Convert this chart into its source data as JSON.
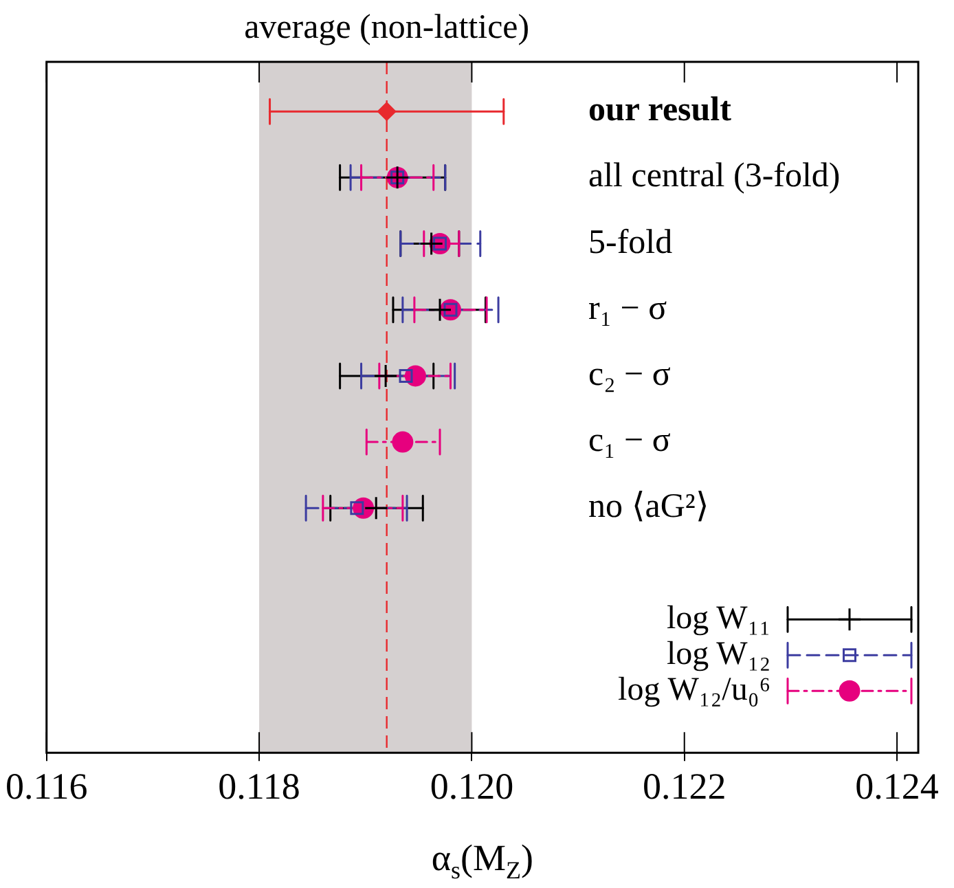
{
  "chart_data": {
    "type": "scatter",
    "orientation": "horizontal",
    "xlabel": "α$_{s}$(M$_{Z}$)",
    "categories": [
      "our result",
      "all central (3-fold)",
      "5-fold",
      "r₁ − σ",
      "c₂ − σ",
      "c₁ − σ",
      "no ⟨aG²⟩"
    ],
    "series": [
      {
        "color": "#e8292e",
        "marker": "diamond",
        "line_style": "solid",
        "values": [
          0.1192,
          null,
          null,
          null,
          null,
          null,
          null
        ],
        "errors": [
          0.0011,
          null,
          null,
          null,
          null,
          null,
          null
        ]
      },
      {
        "name": "log W₁₁",
        "color": "#000000",
        "marker": "cross",
        "line_style": "solid",
        "values": [
          null,
          0.1193,
          0.11962,
          0.1197,
          0.11919,
          null,
          0.1191
        ],
        "errors": [
          null,
          [
            0.11876,
            0.11975
          ],
          [
            0.11933,
            0.11988
          ],
          [
            0.11926,
            0.12013
          ],
          [
            0.11876,
            0.11964
          ],
          null,
          [
            0.11867,
            0.11954
          ]
        ]
      },
      {
        "name": "log W₁₂",
        "color": "#3c3ca0",
        "marker": "square",
        "line_style": "dashed",
        "values": [
          null,
          0.1193,
          0.1197,
          0.1198,
          0.11938,
          null,
          0.11892
        ],
        "errors": [
          null,
          [
            0.11886,
            0.11975
          ],
          [
            0.11933,
            0.12008
          ],
          [
            0.11935,
            0.12025
          ],
          [
            0.11896,
            0.11984
          ],
          null,
          [
            0.11844,
            0.11939
          ]
        ]
      },
      {
        "name": "log W₁₂/u₀⁶",
        "color": "#e6007e",
        "marker": "circle",
        "line_style": "dotted",
        "values": [
          null,
          0.1193,
          0.1197,
          0.1198,
          0.11947,
          0.11935,
          0.11898
        ],
        "errors": [
          null,
          [
            0.11896,
            0.11964
          ],
          [
            0.11955,
            0.11988
          ],
          [
            0.11946,
            0.12014
          ],
          [
            0.11913,
            0.1198
          ],
          [
            0.11901,
            0.1197
          ],
          [
            0.1186,
            0.11935
          ]
        ]
      }
    ],
    "ref_lines": [
      {
        "axis": "x",
        "value": 0.1192,
        "label": "average (non-lattice)",
        "color": "#e8292e",
        "line_style": "dashed"
      }
    ],
    "bands": [
      {
        "axis": "x",
        "from": 0.118,
        "to": 0.12,
        "color": "#d5d0d0"
      }
    ],
    "xlim": [
      0.116,
      0.1242
    ],
    "xticks": [
      {
        "value": 0.116,
        "label": "0.116"
      },
      {
        "value": 0.118,
        "label": "0.118"
      },
      {
        "value": 0.12,
        "label": "0.120"
      },
      {
        "value": 0.122,
        "label": "0.122"
      },
      {
        "value": 0.124,
        "label": "0.124"
      }
    ],
    "grid": false,
    "legend": "bottom right"
  }
}
